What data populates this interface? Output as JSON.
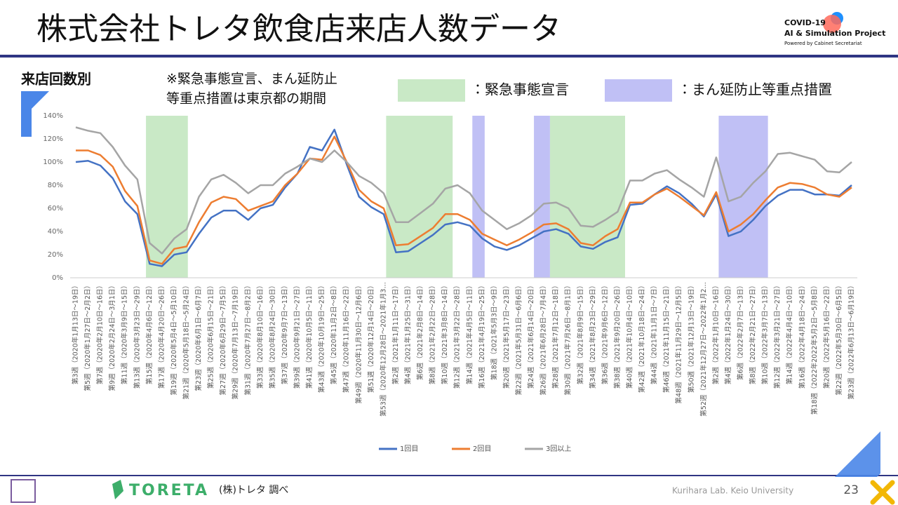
{
  "header": {
    "title": "株式会社トレタ飲食店来店人数データ",
    "logo": [
      "COVID-19",
      "AI & Simulation Project",
      "Powered by Cabinet Secretariat"
    ]
  },
  "section_label": "来店回数別",
  "note": [
    "※緊急事態宣言、まん延防止",
    "等重点措置は東京都の期間"
  ],
  "chart_data": {
    "type": "line",
    "categories": [
      "第3週（2020年1月13日～19日）",
      "第5週（2020年1月27日～2月2日）",
      "第7週（2020年2月10日～16日）",
      "第9週（2020年2月24日～3月1日）",
      "第11週（2020年3月9日～15日）",
      "第13週（2020年3月23日～29日）",
      "第15週（2020年4月6日～12日）",
      "第17週（2020年4月20日～26日）",
      "第19週（2020年5月4日～5月10日）",
      "第21週（2020年5月18日～5月24日）",
      "第23週（2020年6月1日～6月7日）",
      "第25週（2020年6月15日～21日）",
      "第27週（2020年6月29日～7月5日）",
      "第29週（2020年7月13日～7月19日）",
      "第31週（2020年7月27日～8月2日）",
      "第33週（2020年8月10日～16日）",
      "第35週（2020年8月24日～30日）",
      "第37週（2020年9月7日～13日）",
      "第39週（2020年9月21日～27日）",
      "第41週（2020年10月5日～11日）",
      "第43週（2020年10月19日～25日）",
      "第45週（2020年11月2日～8日）",
      "第47週（2020年11月16日～22日）",
      "第49週（2020年11月30日～12月6日）",
      "第51週（2020年12月14日～20日）",
      "第53週（2020年12月28日～2021年1月3…",
      "第2週（2021年1月11日～17日）",
      "第4週（2021年1月25日～31日）",
      "第6週（2021年2月8日～14日）",
      "第8週（2021年2月22日～28日）",
      "第10週（2021年3月8日～14日）",
      "第12週（2021年3月22日～28日）",
      "第14週（2021年4月5日～11日）",
      "第16週（2021年4月19日～25日）",
      "第18週（2021年5月3日～9日）",
      "第20週（2021年5月17日～23日）",
      "第22週（2021年5月31日～6月6日）",
      "第24週（2021年6月14日～20日）",
      "第26週（2021年6月28日～7月4日）",
      "第28週（2021年7月12日～18日）",
      "第30週（2021年7月26日～8月1日）",
      "第32週（2021年8月9日～15日）",
      "第34週（2021年8月23日～29日）",
      "第36週（2021年9月6日～12日）",
      "第38週（2021年9月20日～26日）",
      "第40週（2021年10月4日～10日）",
      "第42週（2021年10月18日～24日）",
      "第44週（2021年11月1日～7日）",
      "第46週（2021年11月15日～21日）",
      "第48週（2021年11月29日～12月5日）",
      "第50週（2021年12月13日～19日）",
      "第52週（2021年12月27日～2022年1月2…",
      "第2週（2022年1月10日～16日）",
      "第4週（2022年1月24日～30日）",
      "第6週（2022年2月7日～13日）",
      "第8週（2022年2月21日～27日）",
      "第10週（2022年3月7日～13日）",
      "第12週（2022年3月21日～27日）",
      "第14週（2022年4月4日～10日）",
      "第16週（2022年4月18日～24日）",
      "第18週（2022年2022年5月2日～5月8日）",
      "第20週（2022年5月16日～22日）",
      "第22週（2022年5月30日～6月5日）",
      "第23週（2022年6月13日～6月19日）"
    ],
    "series": [
      {
        "name": "1回目",
        "color": "#4472c4",
        "values": [
          100,
          101,
          97,
          86,
          66,
          55,
          12,
          10,
          20,
          22,
          38,
          52,
          58,
          58,
          50,
          60,
          63,
          78,
          90,
          113,
          110,
          128,
          98,
          70,
          61,
          55,
          22,
          23,
          30,
          37,
          46,
          48,
          45,
          34,
          27,
          24,
          28,
          34,
          40,
          42,
          38,
          27,
          25,
          31,
          35,
          63,
          64,
          72,
          79,
          73,
          64,
          53,
          72,
          36,
          40,
          50,
          62,
          71,
          76,
          76,
          72,
          72,
          71,
          80
        ]
      },
      {
        "name": "2回目",
        "color": "#ed7d31",
        "values": [
          110,
          110,
          106,
          96,
          75,
          62,
          15,
          12,
          25,
          27,
          48,
          65,
          70,
          68,
          58,
          62,
          66,
          80,
          90,
          103,
          102,
          122,
          100,
          76,
          66,
          60,
          28,
          29,
          36,
          43,
          55,
          55,
          50,
          38,
          33,
          28,
          33,
          39,
          46,
          47,
          42,
          30,
          28,
          36,
          42,
          65,
          65,
          72,
          77,
          70,
          62,
          54,
          74,
          40,
          46,
          55,
          67,
          78,
          82,
          81,
          78,
          72,
          70,
          78
        ]
      },
      {
        "name": "3回以上",
        "color": "#a5a5a5",
        "values": [
          130,
          127,
          125,
          113,
          97,
          85,
          30,
          21,
          34,
          42,
          70,
          85,
          89,
          82,
          73,
          80,
          80,
          90,
          96,
          103,
          100,
          110,
          100,
          88,
          82,
          73,
          48,
          48,
          56,
          64,
          77,
          80,
          73,
          58,
          50,
          42,
          47,
          54,
          64,
          65,
          60,
          45,
          44,
          50,
          57,
          84,
          84,
          90,
          93,
          85,
          78,
          70,
          104,
          66,
          70,
          82,
          92,
          107,
          108,
          105,
          102,
          92,
          91,
          100
        ]
      }
    ],
    "ylim": [
      0,
      140
    ],
    "yticks": [
      {
        "value": 0,
        "label": "0%"
      },
      {
        "value": 20,
        "label": "20%"
      },
      {
        "value": 40,
        "label": "40%"
      },
      {
        "value": 60,
        "label": "60%"
      },
      {
        "value": 80,
        "label": "80%"
      },
      {
        "value": 100,
        "label": "100%"
      },
      {
        "value": 120,
        "label": "120%"
      },
      {
        "value": 140,
        "label": "140%"
      }
    ],
    "grid": false,
    "legend": "bottom",
    "periods": [
      {
        "name": "：緊急事態宣言",
        "color": "#c9e9c6",
        "ranges": [
          [
            5.7,
            9.1
          ],
          [
            25.2,
            30.6
          ],
          [
            38.5,
            44.6
          ]
        ]
      },
      {
        "name": "：まん延防止等重点措置",
        "color": "#c0c0f5",
        "ranges": [
          [
            32.2,
            33.2
          ],
          [
            37.2,
            38.5
          ],
          [
            52.2,
            56.2
          ]
        ]
      }
    ]
  },
  "footer": {
    "brand": "TORETA",
    "source": "(株)トレタ 調べ",
    "credit": "Kurihara Lab. Keio University",
    "page": "23"
  }
}
